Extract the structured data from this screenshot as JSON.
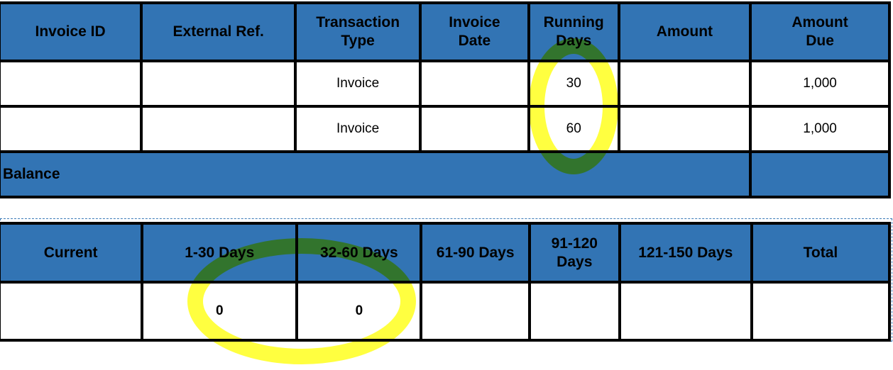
{
  "invoice_table": {
    "headers": [
      "Invoice ID",
      "External Ref.",
      "Transaction Type",
      "Invoice Date",
      "Running Days",
      "Amount",
      "Amount Due"
    ],
    "rows": [
      [
        "",
        "",
        "Invoice",
        "",
        "30",
        "",
        "1,000"
      ],
      [
        "",
        "",
        "Invoice",
        "",
        "60",
        "",
        "1,000"
      ]
    ],
    "balance_label": "Balance"
  },
  "aging_table": {
    "headers": [
      "Current",
      "1-30 Days",
      "32-60 Days",
      "61-90 Days",
      "91-120 Days",
      "121-150 Days",
      "Total"
    ],
    "values": [
      "",
      "0",
      "0",
      "",
      "",
      "",
      ""
    ]
  },
  "colors": {
    "header_blue": "#3274b4",
    "highlight_yellow": "#ffff00"
  }
}
